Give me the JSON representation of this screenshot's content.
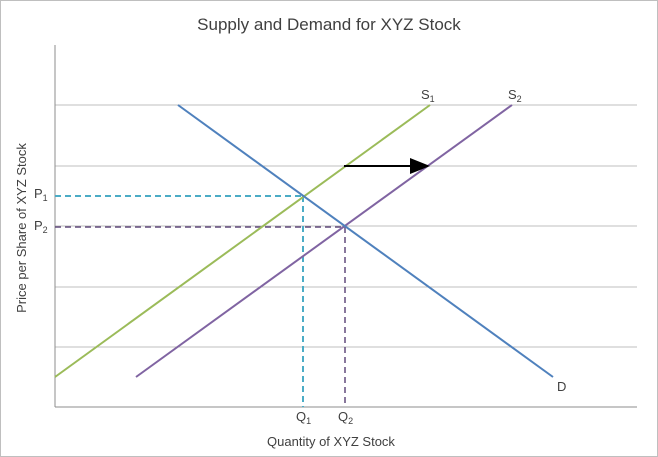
{
  "title": "Supply and Demand for XYZ Stock",
  "x_axis_label": "Quantity of XYZ Stock",
  "y_axis_label": "Price per Share of XYZ Stock",
  "curves": [
    {
      "label": {
        "base": "S",
        "sub": "1"
      }
    },
    {
      "label": {
        "base": "S",
        "sub": "2"
      }
    },
    {
      "label": {
        "base": "D"
      }
    }
  ],
  "price_levels": [
    {
      "base": "P",
      "sub": "1"
    },
    {
      "base": "P",
      "sub": "2"
    }
  ],
  "quantity_levels": [
    {
      "base": "Q",
      "sub": "1"
    },
    {
      "base": "Q",
      "sub": "2"
    }
  ]
}
